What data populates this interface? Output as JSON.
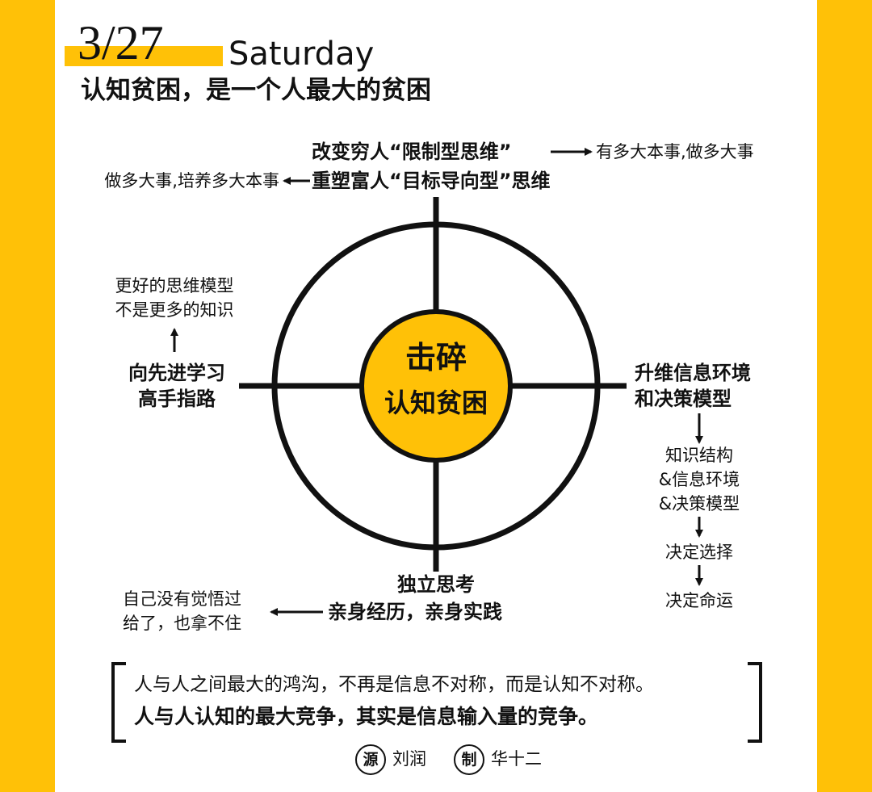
{
  "header": {
    "date": "3/27",
    "weekday": "Saturday",
    "headline": "认知贫困，是一个人最大的贫困"
  },
  "hub": {
    "line1": "击碎",
    "line2": "认知贫困"
  },
  "top": {
    "line1": "改变穷人“限制型思维”",
    "line1_result": "有多大本事,做多大事",
    "line2": "重塑富人“目标导向型”思维",
    "line2_result": "做多大事,培养多大本事"
  },
  "left": {
    "main_line1": "向先进学习",
    "main_line2": "高手指路",
    "note_line1": "更好的思维模型",
    "note_line2": "不是更多的知识"
  },
  "right": {
    "main_line1": "升维信息环境",
    "main_line2": "和决策模型",
    "chain": [
      "知识结构",
      "&信息环境",
      "&决策模型",
      "决定选择",
      "决定命运"
    ]
  },
  "bottom": {
    "main_line1": "独立思考",
    "main_line2": "亲身经历，亲身实践",
    "note_line1": "自己没有觉悟过",
    "note_line2": "给了，也拿不住"
  },
  "quote": {
    "line1": "人与人之间最大的鸿沟，不再是信息不对称，而是认知不对称。",
    "line2": "人与人认知的最大竞争，其实是信息输入量的竞争。"
  },
  "credits": {
    "source_seal": "源",
    "source_name": "刘润",
    "maker_seal": "制",
    "maker_name": "华十二"
  },
  "colors": {
    "accent": "#FFC107",
    "ink": "#111111",
    "paper": "#FFFFFF"
  }
}
